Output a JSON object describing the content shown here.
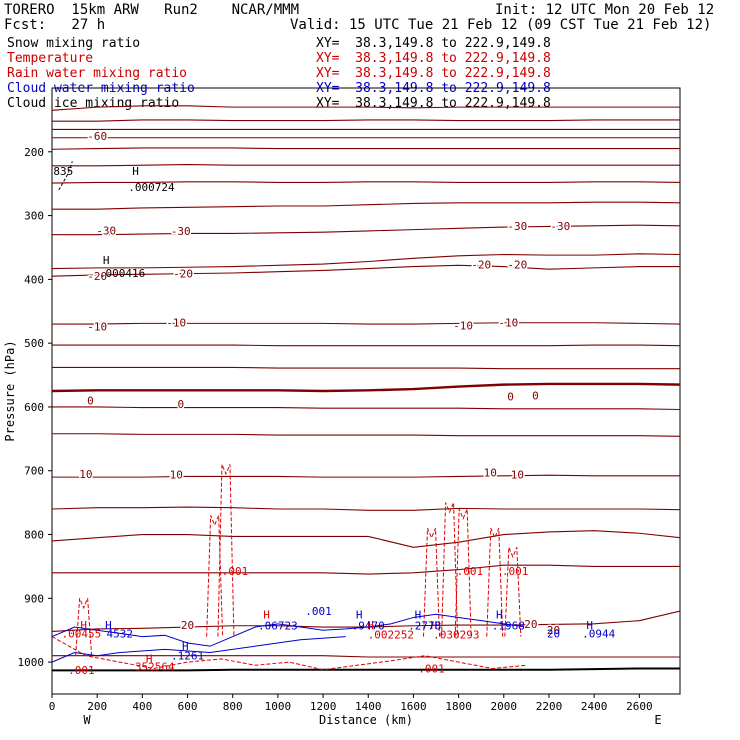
{
  "header": {
    "model": "TORERO  15km ARW   Run2    NCAR/MMM",
    "init": "Init: 12 UTC Mon 20 Feb 12",
    "fcst": "Fcst:   27 h",
    "valid": "Valid: 15 UTC Tue 21 Feb 12 (09 CST Tue 21 Feb 12)"
  },
  "legend": [
    {
      "label": "Snow mixing ratio",
      "xy": "XY=  38.3,149.8 to 222.9,149.8",
      "color": "#000000"
    },
    {
      "label": "Temperature",
      "xy": "XY=  38.3,149.8 to 222.9,149.8",
      "color": "#cc0000"
    },
    {
      "label": "Rain water mixing ratio",
      "xy": "XY=  38.3,149.8 to 222.9,149.8",
      "color": "#cc0000"
    },
    {
      "label": "Cloud water mixing ratio",
      "xy": "XY=  38.3,149.8 to 222.9,149.8",
      "color": "#0000cc"
    },
    {
      "label": "Cloud ice mixing ratio",
      "xy": "XY=  38.3,149.8 to 222.9,149.8",
      "color": "#000000"
    }
  ],
  "chart_data": {
    "type": "line",
    "xlabel": "Distance (km)",
    "ylabel": "Pressure (hPa)",
    "xlim": [
      0,
      2780
    ],
    "ylim": [
      1050,
      100
    ],
    "x_ticks": [
      0,
      200,
      400,
      600,
      800,
      1000,
      1200,
      1400,
      1600,
      1800,
      2000,
      2200,
      2400,
      2600
    ],
    "y_ticks": [
      200,
      300,
      400,
      500,
      600,
      700,
      800,
      900,
      1000
    ],
    "x_end_labels": {
      "left": "W",
      "right": "E"
    },
    "colors": {
      "temperature": "#800000",
      "rain": "#dd0000",
      "cloud_water": "#0000cc",
      "snow": "#000000",
      "ground": "#000000"
    },
    "isotherms": [
      {
        "value": -60,
        "p": [
          135,
          130,
          128,
          128,
          130,
          130,
          130,
          130,
          131,
          130,
          130,
          130,
          130,
          130,
          130
        ]
      },
      {
        "value": -60,
        "p": [
          152,
          152,
          150,
          150,
          151,
          151,
          151,
          150,
          150,
          151,
          151,
          151,
          150,
          150,
          150
        ]
      },
      {
        "value": -60,
        "p": [
          165,
          165,
          165,
          165,
          165,
          165,
          165,
          165,
          165,
          165,
          165,
          165,
          165,
          165,
          165
        ]
      },
      {
        "value": -60,
        "p": [
          178,
          178,
          178,
          178,
          178,
          178,
          178,
          178,
          178,
          178,
          178,
          178,
          178,
          178,
          178
        ]
      },
      {
        "value": -60,
        "p": [
          196,
          195,
          194,
          194,
          194,
          195,
          195,
          195,
          195,
          195,
          195,
          195,
          195,
          195,
          195
        ]
      },
      {
        "value": -50,
        "p": [
          222,
          222,
          221,
          220,
          221,
          221,
          221,
          221,
          221,
          221,
          221,
          221,
          221,
          221,
          221
        ]
      },
      {
        "value": -50,
        "p": [
          249,
          248,
          248,
          247,
          247,
          248,
          248,
          247,
          247,
          248,
          248,
          248,
          247,
          247,
          248
        ]
      },
      {
        "value": -40,
        "p": [
          290,
          290,
          288,
          287,
          286,
          285,
          285,
          283,
          281,
          280,
          280,
          280,
          279,
          279,
          280
        ]
      },
      {
        "value": -30,
        "p": [
          330,
          330,
          329,
          328,
          328,
          327,
          326,
          324,
          322,
          320,
          318,
          317,
          316,
          315,
          316
        ]
      },
      {
        "value": -20,
        "p": [
          383,
          382,
          382,
          381,
          380,
          378,
          376,
          372,
          367,
          363,
          361,
          362,
          362,
          360,
          361
        ]
      },
      {
        "value": -20,
        "p": [
          395,
          393,
          392,
          391,
          390,
          388,
          386,
          383,
          380,
          378,
          380,
          384,
          382,
          380,
          380
        ]
      },
      {
        "value": -10,
        "p": [
          470,
          470,
          469,
          469,
          469,
          469,
          469,
          470,
          470,
          469,
          468,
          468,
          468,
          469,
          470
        ]
      },
      {
        "value": -10,
        "p": [
          503,
          503,
          503,
          503,
          503,
          504,
          504,
          504,
          504,
          504,
          504,
          504,
          503,
          503,
          504
        ]
      },
      {
        "value": 0,
        "p": [
          538,
          538,
          538,
          538,
          538,
          539,
          539,
          539,
          539,
          539,
          540,
          540,
          540,
          540,
          540
        ]
      },
      {
        "value": 0,
        "p": [
          575,
          574,
          574,
          574,
          574,
          574,
          575,
          574,
          572,
          568,
          565,
          564,
          564,
          564,
          565
        ]
      },
      {
        "value": 0,
        "p": [
          600,
          600,
          601,
          601,
          601,
          601,
          602,
          602,
          602,
          602,
          603,
          603,
          603,
          603,
          604
        ]
      },
      {
        "value": 10,
        "p": [
          642,
          642,
          643,
          643,
          643,
          644,
          644,
          644,
          644,
          645,
          645,
          645,
          645,
          645,
          646
        ]
      },
      {
        "value": 10,
        "p": [
          710,
          710,
          710,
          709,
          709,
          709,
          710,
          710,
          710,
          709,
          708,
          707,
          708,
          708,
          708
        ]
      },
      {
        "value": 10,
        "p": [
          760,
          758,
          758,
          757,
          758,
          760,
          760,
          762,
          762,
          759,
          760,
          760,
          760,
          760,
          761
        ]
      },
      {
        "value": 10,
        "p": [
          810,
          805,
          800,
          800,
          803,
          803,
          803,
          803,
          820,
          812,
          800,
          796,
          794,
          798,
          805
        ]
      },
      {
        "value": 20,
        "p": [
          860,
          860,
          860,
          860,
          860,
          860,
          860,
          862,
          860,
          855,
          848,
          848,
          850,
          850,
          850
        ]
      },
      {
        "value": 20,
        "p": [
          952,
          948,
          947,
          945,
          943,
          943,
          945,
          945,
          943,
          942,
          942,
          941,
          940,
          935,
          920
        ]
      },
      {
        "value": 20,
        "p": [
          990,
          990,
          990,
          990,
          990,
          990,
          990,
          992,
          992,
          992,
          992,
          992,
          992,
          992,
          992
        ]
      }
    ],
    "isotherm_x": [
      0,
      200,
      400,
      600,
      800,
      1000,
      1200,
      1400,
      1600,
      1800,
      2000,
      2200,
      2400,
      2600,
      2780
    ],
    "temperature_labels": [
      {
        "text": "-60",
        "x": 200,
        "p": 175
      },
      {
        "text": "-30",
        "x": 240,
        "p": 323
      },
      {
        "text": "-30",
        "x": 570,
        "p": 324
      },
      {
        "text": "-30",
        "x": 2060,
        "p": 316
      },
      {
        "text": "-30",
        "x": 2250,
        "p": 316
      },
      {
        "text": "-20",
        "x": 200,
        "p": 395
      },
      {
        "text": "-20",
        "x": 580,
        "p": 391
      },
      {
        "text": "-20",
        "x": 1900,
        "p": 377
      },
      {
        "text": "-20",
        "x": 2060,
        "p": 377
      },
      {
        "text": "-10",
        "x": 200,
        "p": 474
      },
      {
        "text": "-10",
        "x": 550,
        "p": 468
      },
      {
        "text": "-10",
        "x": 1820,
        "p": 472
      },
      {
        "text": "-10",
        "x": 2020,
        "p": 468
      },
      {
        "text": "0",
        "x": 170,
        "p": 590
      },
      {
        "text": "0",
        "x": 570,
        "p": 595
      },
      {
        "text": "0",
        "x": 2030,
        "p": 584
      },
      {
        "text": "0",
        "x": 2140,
        "p": 582
      },
      {
        "text": "10",
        "x": 150,
        "p": 705
      },
      {
        "text": "10",
        "x": 550,
        "p": 706
      },
      {
        "text": "10",
        "x": 1940,
        "p": 703
      },
      {
        "text": "10",
        "x": 2060,
        "p": 706
      },
      {
        "text": "20",
        "x": 600,
        "p": 942
      },
      {
        "text": "20",
        "x": 2120,
        "p": 940
      },
      {
        "text": "20",
        "x": 2220,
        "p": 950
      }
    ],
    "rain_labels": [
      {
        "text": ".001",
        "x": 810,
        "p": 857
      },
      {
        "text": ".001",
        "x": 1850,
        "p": 857
      },
      {
        "text": ".001",
        "x": 2050,
        "p": 857
      },
      {
        "text": ".001",
        "x": 130,
        "p": 1012
      },
      {
        "text": ".001",
        "x": 1680,
        "p": 1010
      },
      {
        "text": ".00455",
        "x": 130,
        "p": 955
      },
      {
        "text": ".352564",
        "x": 440,
        "p": 1007
      },
      {
        "text": ".002252",
        "x": 1500,
        "p": 957
      },
      {
        "text": ".030293",
        "x": 1790,
        "p": 957
      },
      {
        "text": "H",
        "x": 140,
        "p": 942
      },
      {
        "text": "H",
        "x": 430,
        "p": 994
      },
      {
        "text": "H",
        "x": 950,
        "p": 925
      },
      {
        "text": "H",
        "x": 1410,
        "p": 942
      },
      {
        "text": "H",
        "x": 1690,
        "p": 942
      }
    ],
    "cloud_labels": [
      {
        "text": ".001",
        "x": 1180,
        "p": 920
      },
      {
        "text": "4532",
        "x": 300,
        "p": 955
      },
      {
        "text": ".1261",
        "x": 600,
        "p": 990
      },
      {
        "text": ".06723",
        "x": 1000,
        "p": 943
      },
      {
        "text": ".9470",
        "x": 1400,
        "p": 943
      },
      {
        "text": ".2778",
        "x": 1650,
        "p": 943
      },
      {
        "text": ".1968",
        "x": 2020,
        "p": 943
      },
      {
        "text": ".0944",
        "x": 2420,
        "p": 955
      },
      {
        "text": "H",
        "x": 250,
        "p": 942
      },
      {
        "text": "H",
        "x": 590,
        "p": 975
      },
      {
        "text": "H",
        "x": 1360,
        "p": 925
      },
      {
        "text": "H",
        "x": 1620,
        "p": 925
      },
      {
        "text": "H",
        "x": 1980,
        "p": 925
      },
      {
        "text": "H",
        "x": 2380,
        "p": 942
      },
      {
        "text": "20",
        "x": 2220,
        "p": 955
      }
    ],
    "snow_labels": [
      {
        "text": "H",
        "x": 370,
        "p": 230
      },
      {
        "text": ".000724",
        "x": 440,
        "p": 255
      },
      {
        "text": "H",
        "x": 240,
        "p": 370
      },
      {
        "text": ".000416",
        "x": 310,
        "p": 390
      },
      {
        "text": "835",
        "x": 50,
        "p": 230
      }
    ],
    "ground_p": [
      1013,
      1013,
      1013,
      1013,
      1012,
      1012,
      1012,
      1012,
      1012,
      1012,
      1012,
      1012,
      1011,
      1010,
      1010
    ]
  }
}
